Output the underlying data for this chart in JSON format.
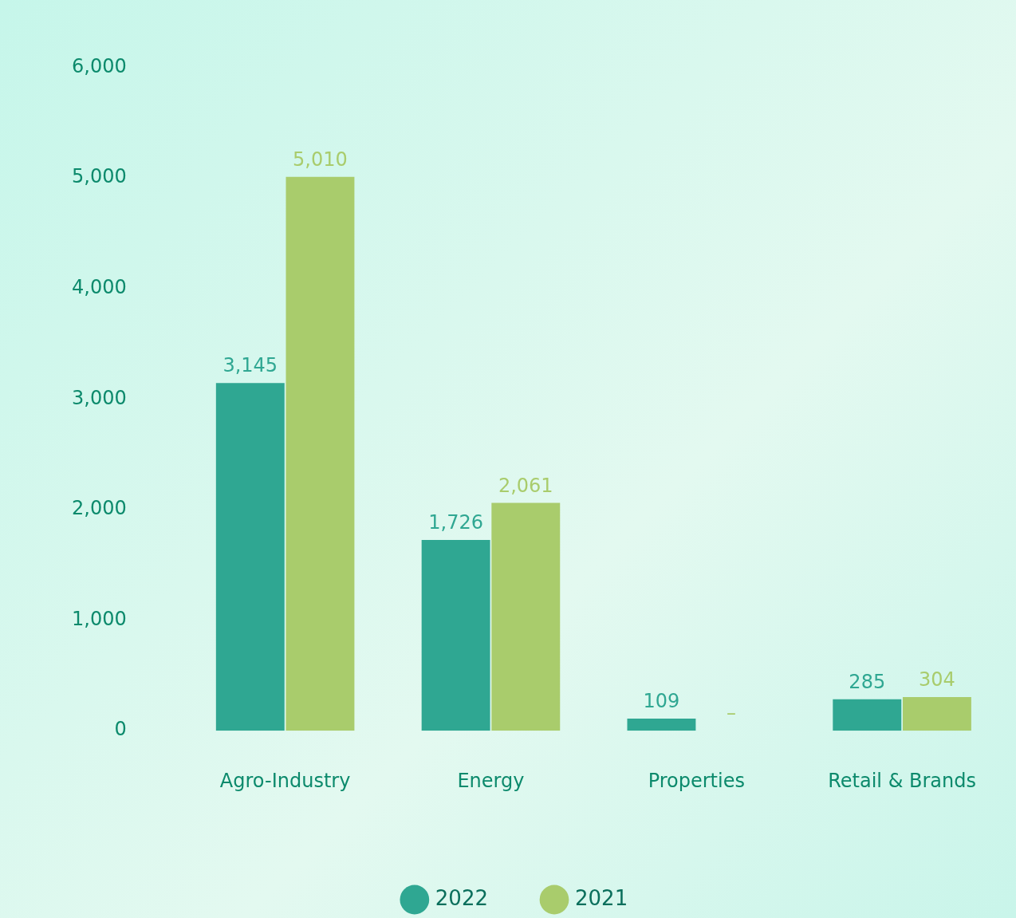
{
  "chart_data": {
    "type": "bar",
    "categories": [
      "Agro-Industry",
      "Energy",
      "Properties",
      "Retail & Brands"
    ],
    "series": [
      {
        "name": "2022",
        "color": "#2fa792",
        "values": [
          3145,
          1726,
          109,
          285
        ],
        "value_labels": [
          "3,145",
          "1,726",
          "109",
          "285"
        ]
      },
      {
        "name": "2021",
        "color": "#a9cc6c",
        "values": [
          5010,
          2061,
          null,
          304
        ],
        "value_labels": [
          "5,010",
          "2,061",
          "–",
          "304"
        ]
      }
    ],
    "ylim": [
      0,
      6000
    ],
    "yticks": [
      0,
      {
        "value": 1000,
        "label": "1,000"
      },
      {
        "value": 2000,
        "label": "2,000"
      },
      {
        "value": 3000,
        "label": "3,000"
      },
      {
        "value": 4000,
        "label": "4,000"
      },
      {
        "value": 5000,
        "label": "5,000"
      },
      {
        "value": 6000,
        "label": "6,000"
      }
    ],
    "grid": false,
    "legend": "bottom"
  }
}
